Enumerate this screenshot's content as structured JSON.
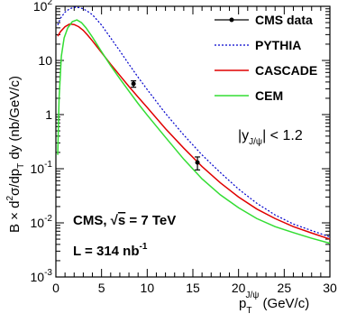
{
  "chart_data": {
    "type": "line",
    "xlabel_main": "p",
    "xlabel_sub": "T",
    "xlabel_sup": "J/ψ",
    "xlabel_unit": " (GeV/c)",
    "ylabel_main": "B × d",
    "ylabel_sup": "2",
    "ylabel_mid": "σ/dp",
    "ylabel_sub": "T",
    "ylabel_tail": " dy (nb/GeV/c)",
    "xlim": [
      0,
      30
    ],
    "ylim": [
      0.001,
      100
    ],
    "yscale": "log",
    "x_ticks": [
      "0",
      "5",
      "10",
      "15",
      "20",
      "25",
      "30"
    ],
    "y_ticks": [
      {
        "base": "10",
        "exp": "2"
      },
      {
        "base": "10",
        "exp": ""
      },
      {
        "base": "1",
        "exp": ""
      },
      {
        "base": "10",
        "exp": "-1"
      },
      {
        "base": "10",
        "exp": "-2"
      },
      {
        "base": "10",
        "exp": "-3"
      }
    ],
    "legend_position": "top-right",
    "series": [
      {
        "name": "CMS data",
        "kind": "points",
        "color": "#000000",
        "points": [
          {
            "x": 8.5,
            "y": 3.7,
            "yerr_lo": 0.5,
            "yerr_hi": 0.5
          },
          {
            "x": 15.5,
            "y": 0.13,
            "yerr_lo": 0.035,
            "yerr_hi": 0.035
          }
        ]
      },
      {
        "name": "PYTHIA",
        "kind": "line",
        "style": "dotted",
        "color": "#0000cc",
        "x": [
          0.2,
          0.5,
          1,
          1.5,
          2,
          2.5,
          3,
          3.5,
          4,
          5,
          6,
          7,
          8,
          9,
          10,
          12,
          14,
          16,
          18,
          20,
          22,
          24,
          26,
          28,
          30
        ],
        "y": [
          45,
          60,
          78,
          90,
          96,
          95,
          90,
          80,
          70,
          45,
          26,
          15,
          8.5,
          4.9,
          2.9,
          1.05,
          0.42,
          0.18,
          0.085,
          0.042,
          0.023,
          0.014,
          0.0095,
          0.0072,
          0.0055
        ]
      },
      {
        "name": "CASCADE",
        "kind": "line",
        "style": "solid",
        "color": "#e00000",
        "x": [
          0.2,
          0.5,
          1,
          1.5,
          2,
          2.5,
          3,
          3.5,
          4,
          5,
          6,
          7,
          8,
          9,
          10,
          12,
          14,
          16,
          18,
          20,
          22,
          24,
          26,
          28,
          30
        ],
        "y": [
          28,
          34,
          42,
          47,
          46,
          42,
          36,
          29,
          23,
          14,
          8.5,
          5.3,
          3.3,
          2.1,
          1.35,
          0.55,
          0.24,
          0.11,
          0.055,
          0.03,
          0.018,
          0.012,
          0.0085,
          0.0065,
          0.005
        ]
      },
      {
        "name": "CEM",
        "kind": "line",
        "style": "solid",
        "color": "#33dd33",
        "x": [
          0.2,
          0.35,
          0.6,
          0.9,
          1.3,
          1.8,
          2.3,
          2.8,
          3.3,
          4,
          5,
          6,
          7,
          8,
          9,
          10,
          12,
          14,
          16,
          18,
          20,
          22,
          24,
          26,
          28,
          30
        ],
        "y": [
          0.18,
          2,
          12,
          26,
          40,
          52,
          56,
          50,
          40,
          27,
          14.5,
          8,
          4.6,
          2.7,
          1.6,
          0.98,
          0.38,
          0.15,
          0.065,
          0.033,
          0.019,
          0.012,
          0.0085,
          0.0066,
          0.0052,
          0.0042
        ]
      }
    ],
    "annotations": {
      "rapidity": {
        "pre": "|y",
        "sub": "J/ψ",
        "post": "| < 1.2"
      },
      "experiment": {
        "main": "CMS, ",
        "sqrt": "√",
        "s": "s",
        "energy": " = 7 TeV"
      },
      "lumi": {
        "main": "L = 314 nb",
        "sup": "-1"
      }
    }
  }
}
